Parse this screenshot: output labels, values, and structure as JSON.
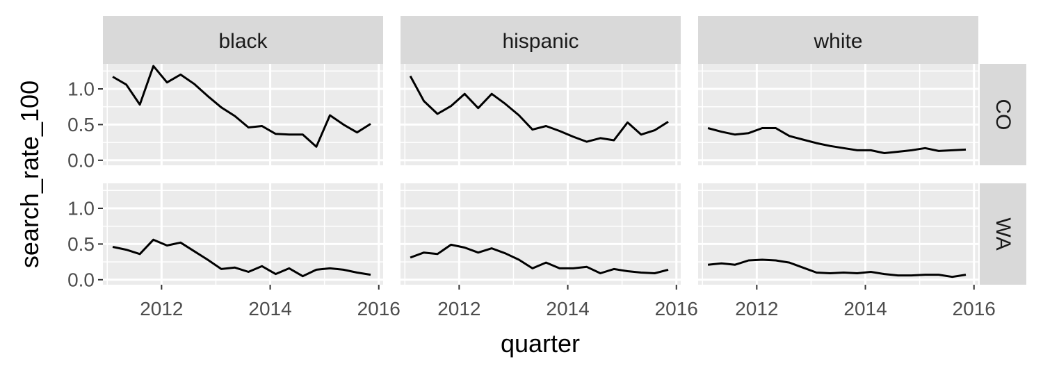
{
  "chart_data": {
    "type": "line",
    "xlabel": "quarter",
    "ylabel": "search_rate_100",
    "x_ticks": [
      2012,
      2014,
      2016
    ],
    "x_tick_labels": [
      "2012",
      "2014",
      "2016"
    ],
    "y_ticks": [
      0,
      0.5,
      1
    ],
    "y_tick_labels": [
      "0.0",
      "0.5",
      "1.0"
    ],
    "xlim": [
      2010.92,
      2016.08
    ],
    "ylim": [
      -0.07,
      1.35
    ],
    "columns": [
      "black",
      "hispanic",
      "white"
    ],
    "rows": [
      "CO",
      "WA"
    ],
    "quarters": [
      2011.1,
      2011.35,
      2011.6,
      2011.85,
      2012.1,
      2012.35,
      2012.6,
      2012.85,
      2013.1,
      2013.35,
      2013.6,
      2013.85,
      2014.1,
      2014.35,
      2014.6,
      2014.85,
      2015.1,
      2015.35,
      2015.6,
      2015.85
    ],
    "panels": [
      {
        "row": "CO",
        "col": "black",
        "values": [
          1.17,
          1.06,
          0.78,
          1.32,
          1.09,
          1.2,
          1.07,
          0.9,
          0.74,
          0.62,
          0.46,
          0.48,
          0.37,
          0.36,
          0.36,
          0.19,
          0.63,
          0.5,
          0.39,
          0.51
        ]
      },
      {
        "row": "CO",
        "col": "hispanic",
        "values": [
          1.18,
          0.83,
          0.65,
          0.76,
          0.93,
          0.73,
          0.93,
          0.79,
          0.63,
          0.43,
          0.48,
          0.41,
          0.33,
          0.26,
          0.31,
          0.28,
          0.53,
          0.36,
          0.42,
          0.54
        ]
      },
      {
        "row": "CO",
        "col": "white",
        "values": [
          0.45,
          0.4,
          0.36,
          0.38,
          0.45,
          0.45,
          0.34,
          0.29,
          0.24,
          0.2,
          0.17,
          0.14,
          0.14,
          0.1,
          0.12,
          0.14,
          0.17,
          0.13,
          0.14,
          0.15
        ]
      },
      {
        "row": "WA",
        "col": "black",
        "values": [
          0.46,
          0.42,
          0.36,
          0.56,
          0.48,
          0.52,
          0.4,
          0.28,
          0.15,
          0.17,
          0.11,
          0.19,
          0.08,
          0.16,
          0.05,
          0.14,
          0.16,
          0.14,
          0.1,
          0.07
        ]
      },
      {
        "row": "WA",
        "col": "hispanic",
        "values": [
          0.31,
          0.38,
          0.36,
          0.49,
          0.45,
          0.38,
          0.44,
          0.37,
          0.28,
          0.16,
          0.24,
          0.16,
          0.16,
          0.18,
          0.09,
          0.15,
          0.12,
          0.1,
          0.09,
          0.14
        ]
      },
      {
        "row": "WA",
        "col": "white",
        "values": [
          0.21,
          0.23,
          0.21,
          0.27,
          0.28,
          0.27,
          0.24,
          0.17,
          0.1,
          0.09,
          0.1,
          0.09,
          0.11,
          0.08,
          0.06,
          0.06,
          0.07,
          0.07,
          0.04,
          0.07
        ]
      }
    ],
    "legend": "none",
    "grid": true,
    "colors": {
      "panel_bg": "#ebebeb",
      "strip_bg": "#d9d9d9",
      "grid": "#ffffff",
      "line": "#000000",
      "tick": "#333333",
      "tick_text": "#4d4d4d"
    }
  }
}
